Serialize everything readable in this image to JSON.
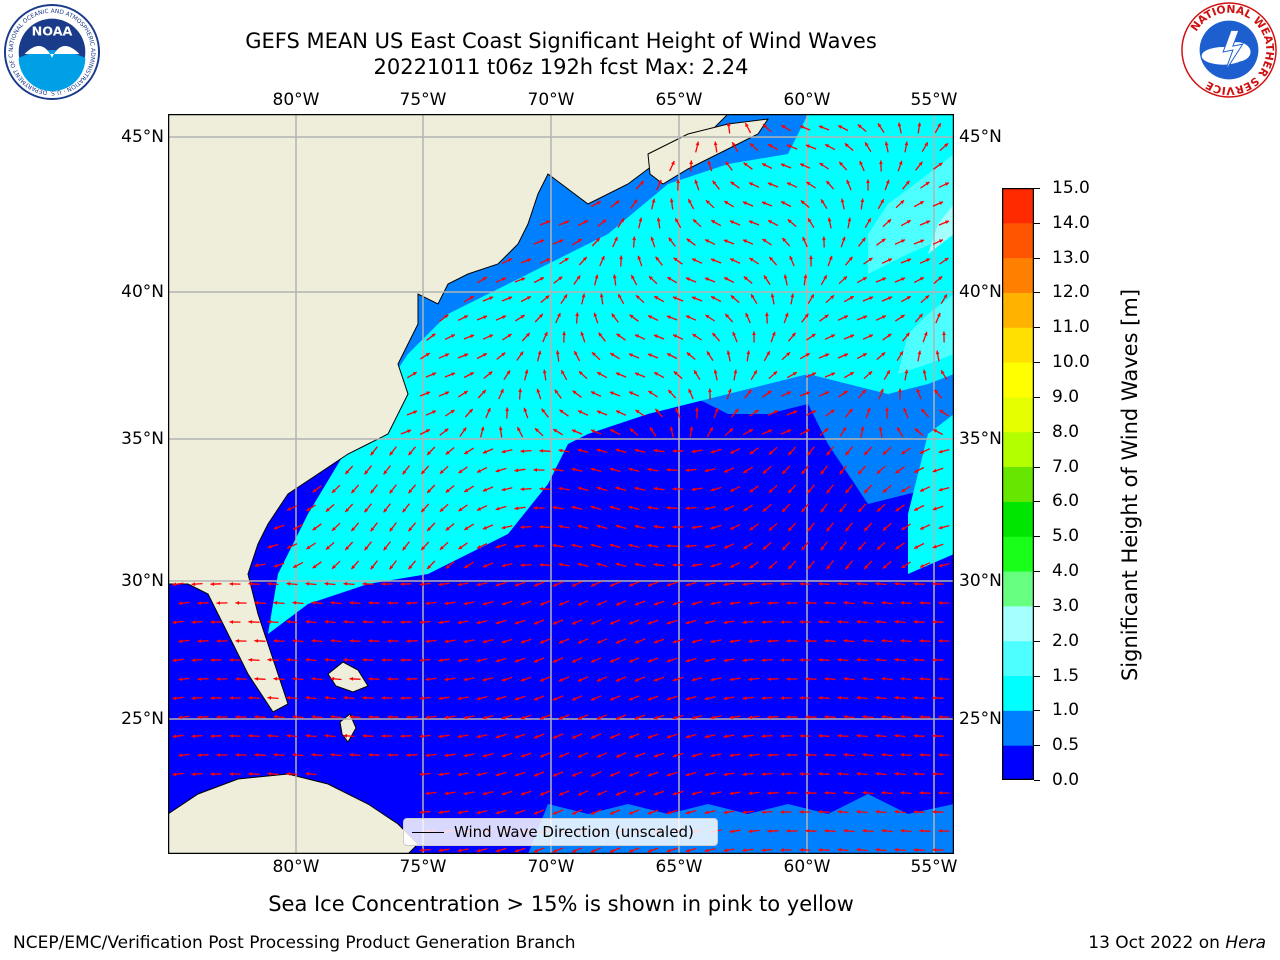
{
  "title_line1": "GEFS MEAN US East Coast Significant Height of Wind Waves",
  "title_line2": "20221011 t06z 192h fcst   Max: 2.24",
  "map": {
    "lon_labels": [
      "80°W",
      "75°W",
      "70°W",
      "65°W",
      "60°W",
      "55°W"
    ],
    "lat_labels": [
      "45°N",
      "40°N",
      "35°N",
      "30°N",
      "25°N"
    ],
    "land_color": "#efeedb",
    "grid_color": "#b3b3b3",
    "arrow_color": "#ff0000",
    "legend_label": "Wind Wave Direction (unscaled)"
  },
  "colorbar": {
    "label": "Significant Height of Wind Waves [m]",
    "ticks": [
      "0.0",
      "0.5",
      "1.0",
      "1.5",
      "2.0",
      "3.0",
      "4.0",
      "5.0",
      "6.0",
      "7.0",
      "8.0",
      "9.0",
      "10.0",
      "11.0",
      "12.0",
      "13.0",
      "14.0",
      "15.0"
    ],
    "colors": [
      "#0000ff",
      "#0080ff",
      "#00ffff",
      "#4dffff",
      "#a6ffff",
      "#66ff80",
      "#1aff1a",
      "#00e600",
      "#66e600",
      "#b3ff00",
      "#e6ff00",
      "#ffff00",
      "#ffe000",
      "#ffb300",
      "#ff8000",
      "#ff5500",
      "#ff2a00",
      "#ff0000"
    ]
  },
  "footnote": "Sea Ice Concentration > 15% is shown in pink to yellow",
  "credit": "NCEP/EMC/Verification Post Processing Product Generation Branch",
  "date_text": "13 Oct 2022 on",
  "date_host": "Hera",
  "logos": {
    "noaa_text": "NOAA",
    "noaa_ring_text": "NATIONAL OCEANIC AND ATMOSPHERIC ADMINISTRATION · U.S. DEPARTMENT OF COMMERCE",
    "nws_ring_text": "NATIONAL WEATHER SERVICE"
  }
}
